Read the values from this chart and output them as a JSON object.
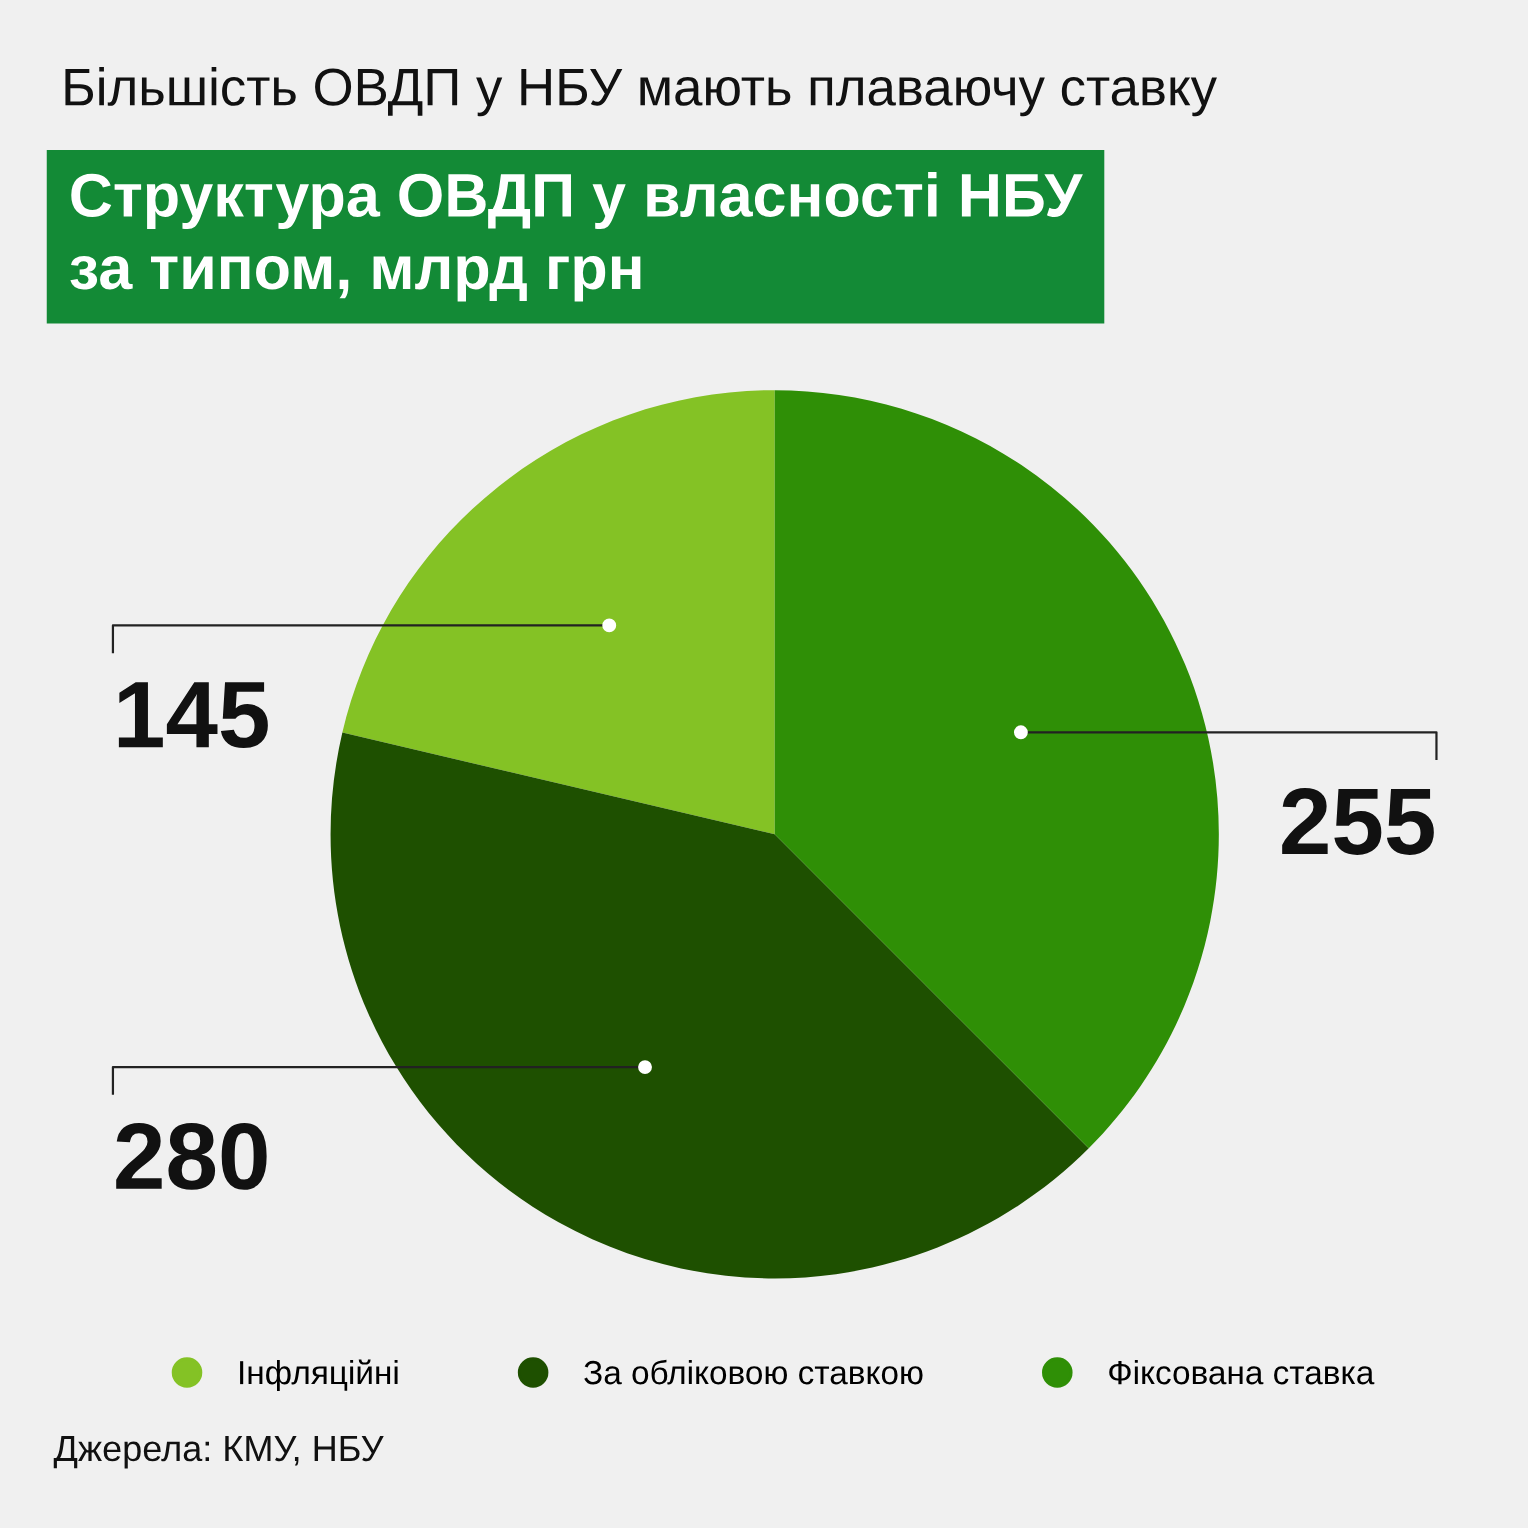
{
  "chart_data": {
    "type": "pie",
    "title": "Більшість ОВДП у НБУ мають плаваючу ставку",
    "subtitle": "Структура ОВДП у власності НБУ\nза типом, млрд грн",
    "categories": [
      "Інфляційні",
      "За обліковою ставкою",
      "Фіксована ставка"
    ],
    "values": [
      145,
      280,
      255
    ],
    "colors": [
      "#84c225",
      "#1e5000",
      "#2f8f06"
    ],
    "data_labels": true,
    "legend": "bottom",
    "annotations": [
      "Джерела: КМУ, НБУ"
    ]
  }
}
